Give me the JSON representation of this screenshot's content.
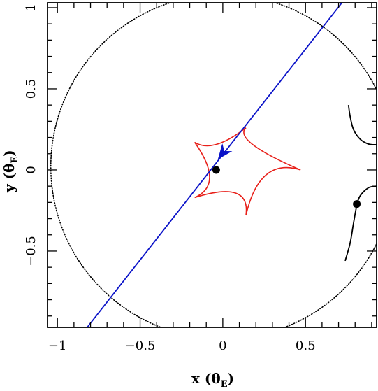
{
  "chart_data": {
    "type": "scatter",
    "title": "",
    "xlabel": "x (θE)",
    "ylabel": "y (θE)",
    "axis_label_parts": {
      "x": {
        "main": "x (θ",
        "sub": "E",
        "close": ")"
      },
      "y": {
        "main": "y (θ",
        "sub": "E",
        "close": ")"
      }
    },
    "xlim": [
      -1.06,
      0.93
    ],
    "ylim": [
      -0.97,
      1.03
    ],
    "x_ticks": [
      {
        "value": -1,
        "label": "−1"
      },
      {
        "value": -0.5,
        "label": "−0.5"
      },
      {
        "value": 0,
        "label": "0"
      },
      {
        "value": 0.5,
        "label": "0.5"
      }
    ],
    "y_ticks": [
      {
        "value": -0.5,
        "label": "−0.5"
      },
      {
        "value": 0,
        "label": "0"
      },
      {
        "value": 0.5,
        "label": "0.5"
      },
      {
        "value": 1,
        "label": "1"
      }
    ],
    "grid": false,
    "legend": "none",
    "series": [
      {
        "kind": "dotted-circle",
        "color": "#000000",
        "center": [
          0,
          0.02
        ],
        "radius": 1.04
      },
      {
        "kind": "solid-curve",
        "color": "#000000",
        "points": [
          [
            0.76,
            0.4
          ],
          [
            0.77,
            0.33
          ],
          [
            0.79,
            0.25
          ],
          [
            0.83,
            0.19
          ],
          [
            0.88,
            0.16
          ],
          [
            0.93,
            0.155
          ]
        ]
      },
      {
        "kind": "solid-curve",
        "color": "#000000",
        "points": [
          [
            0.74,
            -0.56
          ],
          [
            0.77,
            -0.45
          ],
          [
            0.79,
            -0.33
          ],
          [
            0.81,
            -0.22
          ],
          [
            0.83,
            -0.16
          ],
          [
            0.88,
            -0.11
          ],
          [
            0.93,
            -0.1
          ]
        ]
      },
      {
        "kind": "caustic",
        "color": "#e8201a",
        "cusps": [
          [
            0.14,
            0.26
          ],
          [
            0.47,
            0.0
          ],
          [
            0.14,
            -0.28
          ],
          [
            -0.17,
            -0.17
          ],
          [
            -0.17,
            0.17
          ]
        ],
        "inner": [
          [
            0.06,
            0.18
          ],
          [
            0.22,
            0.08
          ],
          [
            0.17,
            -0.06
          ],
          [
            0.01,
            -0.09
          ],
          [
            -0.06,
            0.1
          ]
        ]
      },
      {
        "kind": "trajectory",
        "color": "#0a12c8",
        "from": [
          -0.82,
          -0.97
        ],
        "to": [
          0.72,
          1.03
        ]
      }
    ],
    "images": [
      {
        "x": -0.04,
        "y": 0.0,
        "color": "#000000"
      },
      {
        "x": 0.81,
        "y": -0.21,
        "color": "#000000"
      }
    ],
    "direction_arrow": {
      "x": -0.03,
      "y": 0.065,
      "angle_deg": 232,
      "color": "#0a12c8"
    }
  }
}
